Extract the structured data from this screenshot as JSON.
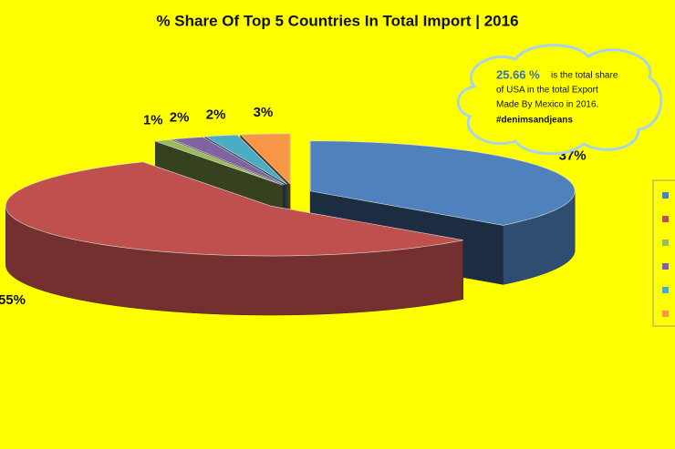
{
  "chart_data": {
    "type": "pie3d",
    "title": "% Share Of Top 5 Countries In Total Import | 2016",
    "categories": [
      null,
      null,
      null,
      null,
      null,
      null
    ],
    "values": [
      37,
      55,
      1,
      2,
      2,
      3
    ],
    "value_labels": [
      "37%",
      "55%",
      "1%",
      "2%",
      "2%",
      "3%"
    ],
    "colors": [
      "#4f81bd",
      "#c0504d",
      "#9bbb59",
      "#8064a2",
      "#4bacc6",
      "#f79646"
    ],
    "annotation": {
      "highlight": "25.66 %",
      "lines": [
        "is the total share",
        "of USA in the total Export",
        "Made By Mexico in 2016."
      ],
      "tag": "#denimsandjeans"
    }
  }
}
